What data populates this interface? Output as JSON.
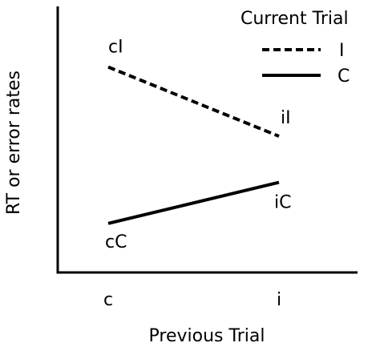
{
  "chart_data": {
    "type": "line",
    "title": "",
    "xlabel": "Previous Trial",
    "ylabel": "RT or error rates",
    "categories": [
      "c",
      "i"
    ],
    "ylim": [
      0,
      10
    ],
    "grid": false,
    "legend": {
      "title": "Current Trial",
      "placement": "top-right"
    },
    "series": [
      {
        "name": "I",
        "style": "dashed",
        "color": "#000000",
        "values": [
          7.7,
          5.0
        ],
        "point_labels": [
          "cI",
          "iI"
        ]
      },
      {
        "name": "C",
        "style": "solid",
        "color": "#000000",
        "values": [
          1.6,
          3.2
        ],
        "point_labels": [
          "cC",
          "iC"
        ]
      }
    ]
  }
}
